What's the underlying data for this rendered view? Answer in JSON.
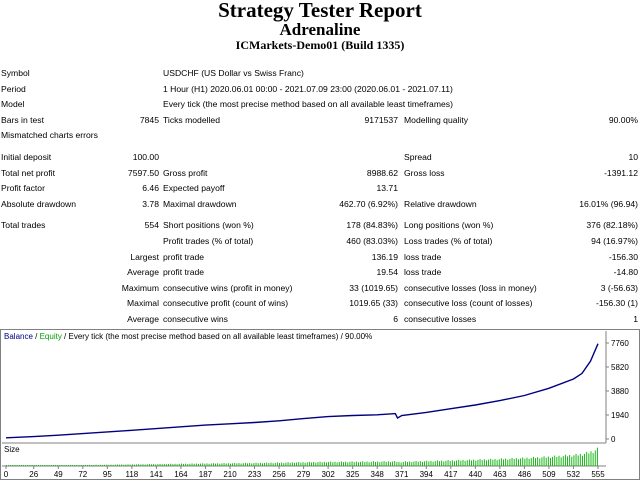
{
  "header": {
    "title": "Strategy Tester Report",
    "expert": "Adrenaline",
    "account": "ICMarkets-Demo01 (Build 1335)"
  },
  "info": {
    "symbol_label": "Symbol",
    "symbol": "USDCHF (US Dollar vs Swiss Franc)",
    "period_label": "Period",
    "period": "1 Hour (H1) 2020.06.01 00:00 - 2021.07.09 23:00 (2020.06.01 - 2021.07.11)",
    "model_label": "Model",
    "model": "Every tick (the most precise method based on all available least timeframes)",
    "bars_label": "Bars in test",
    "bars": "7845",
    "ticks_label": "Ticks modelled",
    "ticks": "9171537",
    "quality_label": "Modelling quality",
    "quality": "90.00%",
    "mismatch_label": "Mismatched charts errors"
  },
  "results": {
    "initial_deposit_label": "Initial deposit",
    "initial_deposit": "100.00",
    "spread_label": "Spread",
    "spread": "10",
    "net_profit_label": "Total net profit",
    "net_profit": "7597.50",
    "gross_profit_label": "Gross profit",
    "gross_profit": "8988.62",
    "gross_loss_label": "Gross loss",
    "gross_loss": "-1391.12",
    "profit_factor_label": "Profit factor",
    "profit_factor": "6.46",
    "expected_payoff_label": "Expected payoff",
    "expected_payoff": "13.71",
    "abs_dd_label": "Absolute drawdown",
    "abs_dd": "3.78",
    "max_dd_label": "Maximal drawdown",
    "max_dd": "462.70 (6.92%)",
    "rel_dd_label": "Relative drawdown",
    "rel_dd": "16.01% (96.94)",
    "total_trades_label": "Total trades",
    "total_trades": "554",
    "short_label": "Short positions (won %)",
    "short": "178 (84.83%)",
    "long_label": "Long positions (won %)",
    "long": "376 (82.18%)",
    "profit_trades_label": "Profit trades (% of total)",
    "profit_trades": "460 (83.03%)",
    "loss_trades_label": "Loss trades (% of total)",
    "loss_trades": "94 (16.97%)",
    "largest_label": "Largest",
    "largest_profit_label": "profit trade",
    "largest_profit": "136.19",
    "largest_loss_label": "loss trade",
    "largest_loss": "-156.30",
    "average_label": "Average",
    "avg_profit_label": "profit trade",
    "avg_profit": "19.54",
    "avg_loss_label": "loss trade",
    "avg_loss": "-14.80",
    "maximum_label": "Maximum",
    "max_cons_wins_label": "consecutive wins (profit in money)",
    "max_cons_wins": "33 (1019.65)",
    "max_cons_losses_label": "consecutive losses (loss in money)",
    "max_cons_losses": "3 (-56.63)",
    "maximal_label": "Maximal",
    "maximal_cons_profit_label": "consecutive profit (count of wins)",
    "maximal_cons_profit": "1019.65 (33)",
    "maximal_cons_loss_label": "consecutive loss (count of losses)",
    "maximal_cons_loss": "-156.30 (1)",
    "average2_label": "Average",
    "avg_cons_wins_label": "consecutive wins",
    "avg_cons_wins": "6",
    "avg_cons_losses_label": "consecutive losses",
    "avg_cons_losses": "1"
  },
  "chart_data": {
    "type": "line",
    "legend": {
      "balance": "Balance",
      "sep1": " / ",
      "equity": "Equity",
      "rest": " / Every tick (the most precise method based on all available least timeframes) / 90.00%"
    },
    "y_ticks": [
      "7760",
      "5820",
      "3880",
      "1940",
      "0"
    ],
    "ylim": [
      0,
      7760
    ],
    "x_ticks": [
      "0",
      "26",
      "49",
      "72",
      "95",
      "118",
      "141",
      "164",
      "187",
      "210",
      "233",
      "256",
      "279",
      "302",
      "325",
      "348",
      "371",
      "394",
      "417",
      "440",
      "463",
      "486",
      "509",
      "532",
      "555"
    ],
    "size_label": "Size",
    "balance_points": [
      [
        0,
        100
      ],
      [
        26,
        190
      ],
      [
        49,
        310
      ],
      [
        72,
        440
      ],
      [
        95,
        570
      ],
      [
        118,
        700
      ],
      [
        141,
        840
      ],
      [
        164,
        990
      ],
      [
        187,
        1120
      ],
      [
        210,
        1230
      ],
      [
        233,
        1330
      ],
      [
        256,
        1470
      ],
      [
        279,
        1650
      ],
      [
        302,
        1810
      ],
      [
        325,
        1900
      ],
      [
        348,
        1960
      ],
      [
        365,
        2050
      ],
      [
        367,
        1700
      ],
      [
        370,
        1840
      ],
      [
        371,
        1900
      ],
      [
        394,
        2150
      ],
      [
        417,
        2450
      ],
      [
        440,
        2750
      ],
      [
        463,
        3100
      ],
      [
        486,
        3520
      ],
      [
        509,
        4100
      ],
      [
        532,
        4850
      ],
      [
        540,
        5300
      ],
      [
        548,
        6300
      ],
      [
        555,
        7700
      ]
    ],
    "colors": {
      "balance": "#000080",
      "equity": "#00a000",
      "size": "#00b000"
    }
  }
}
